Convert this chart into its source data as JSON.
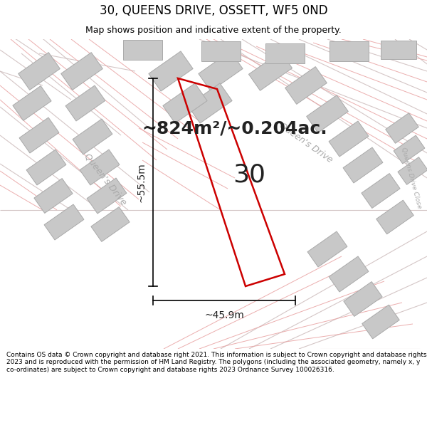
{
  "title": "30, QUEENS DRIVE, OSSETT, WF5 0ND",
  "subtitle": "Map shows position and indicative extent of the property.",
  "area_text": "~824m²/~0.204ac.",
  "width_label": "~45.9m",
  "height_label": "~55.5m",
  "number_label": "30",
  "footer": "Contains OS data © Crown copyright and database right 2021. This information is subject to Crown copyright and database rights 2023 and is reproduced with the permission of HM Land Registry. The polygons (including the associated geometry, namely x, y co-ordinates) are subject to Crown copyright and database rights 2023 Ordnance Survey 100026316.",
  "map_bg": "#ffffff",
  "plot_color": "#cc0000",
  "road_line_color": "#d0c0c0",
  "prop_line_color": "#e8a0a0",
  "building_color": "#c8c8c8",
  "building_edge": "#aaaaaa",
  "title_bg": "#ffffff",
  "footer_bg": "#ffffff",
  "text_color": "#222222",
  "road_label_color": "#aaaaaa",
  "meas_color": "#000000",
  "area_fontsize": 18,
  "number_fontsize": 26,
  "title_fontsize": 12,
  "subtitle_fontsize": 9,
  "footer_fontsize": 6.5
}
